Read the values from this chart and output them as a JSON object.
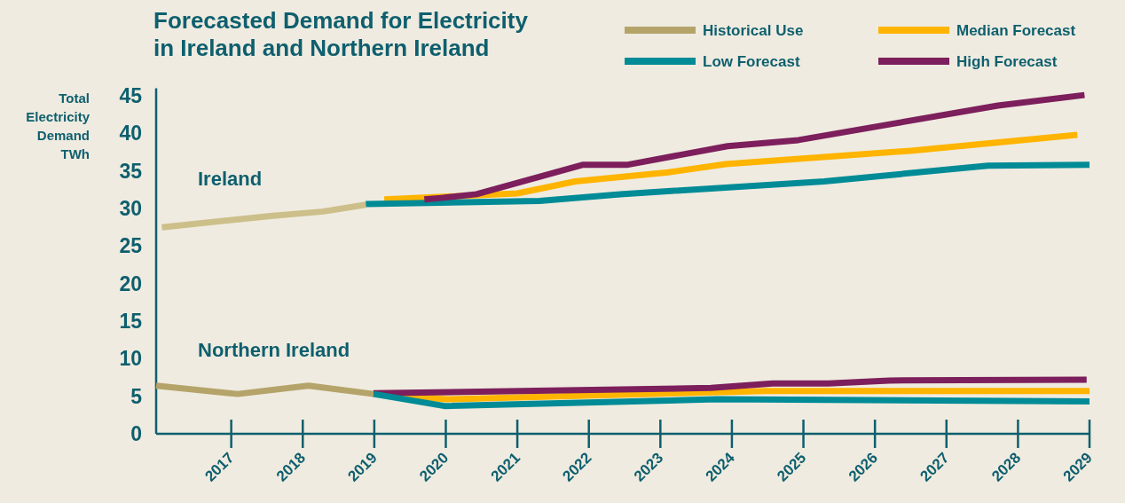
{
  "chart_data": {
    "type": "line",
    "title": "Forecasted Demand for Electricity\nin Ireland and Northern Ireland",
    "ylabel": "Total Electricity Demand TWh",
    "xlim": [
      2015.95,
      2029
    ],
    "xticks": [
      2017,
      2018,
      2019,
      2020,
      2021,
      2022,
      2023,
      2024,
      2025,
      2026,
      2027,
      2028,
      2029
    ],
    "ylim": [
      0,
      46
    ],
    "yticks": [
      0,
      5,
      10,
      15,
      20,
      25,
      30,
      35,
      40,
      45
    ],
    "grid": false,
    "legend": "top right",
    "marker": "none",
    "line_style": "solid",
    "annotations": [
      "Ireland",
      "Northern Ireland"
    ],
    "series": [
      {
        "name": "Historical Use",
        "color": "#b5a46a",
        "x": [
          2015.95,
          2017.09,
          2018.08,
          2018.99
        ],
        "values": [
          6.4,
          5.3,
          6.4,
          5.3
        ]
      },
      {
        "name": "Median Forecast",
        "color": "#ffb400",
        "x": [
          2019.14,
          2021.0,
          2021.81,
          2023.11,
          2023.91,
          2026.53,
          2028.83
        ],
        "values": [
          31.2,
          32.0,
          33.6,
          34.8,
          35.9,
          37.7,
          39.8
        ]
      },
      {
        "name": "Low Forecast",
        "color": "#008b96",
        "x": [
          2018.88,
          2021.31,
          2022.44,
          2025.29,
          2027.58,
          2029
        ],
        "values": [
          30.6,
          31.0,
          31.9,
          33.6,
          35.7,
          35.8
        ]
      },
      {
        "name": "High Forecast",
        "color": "#7d1f5c",
        "x": [
          2019.7,
          2019.94,
          2020.43,
          2021.91,
          2022.53,
          2023.94,
          2024.93,
          2027.72,
          2028.93
        ],
        "values": [
          31.2,
          31.4,
          31.9,
          35.8,
          35.8,
          38.3,
          39.1,
          43.7,
          45.1
        ]
      },
      {
        "color": "#cdbf8a",
        "x": [
          2016.03,
          2017.55,
          2018.29,
          2018.88
        ],
        "values": [
          27.5,
          29.0,
          29.6,
          30.5
        ]
      },
      {
        "color": "#ffb400",
        "x": [
          2018.99,
          2020.0,
          2024.48,
          2029
        ],
        "values": [
          5.3,
          4.6,
          5.7,
          5.7
        ]
      },
      {
        "color": "#7d1f5c",
        "x": [
          2018.99,
          2023.71,
          2024.57,
          2025.35,
          2026.2,
          2028.96
        ],
        "values": [
          5.4,
          6.1,
          6.7,
          6.7,
          7.1,
          7.2
        ]
      },
      {
        "color": "#008b96",
        "x": [
          2018.99,
          2019.98,
          2023.8,
          2029
        ],
        "values": [
          5.3,
          3.7,
          4.6,
          4.3
        ]
      }
    ]
  }
}
